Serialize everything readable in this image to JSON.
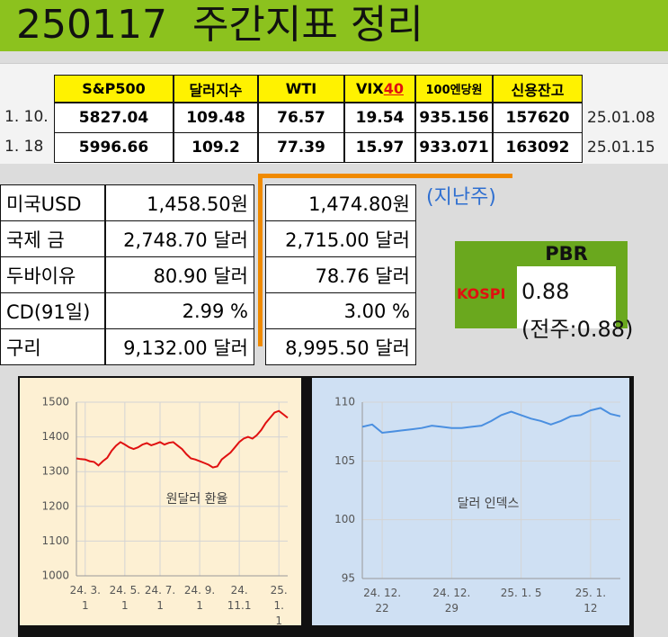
{
  "header": {
    "title": "250117  주간지표 정리"
  },
  "table1": {
    "headers": [
      "S&P500",
      "달러지수",
      "WTI",
      [
        "VIX",
        "40"
      ],
      "100엔당원",
      "신용잔고"
    ],
    "rows": [
      {
        "label": "1. 10.",
        "values": [
          "5827.04",
          "109.48",
          "76.57",
          "19.54",
          "935.156",
          "157620"
        ],
        "date": "25.01.08"
      },
      {
        "label": "1. 18",
        "values": [
          "5996.66",
          "109.2",
          "77.39",
          "15.97",
          "933.071",
          "163092"
        ],
        "date": "25.01.15"
      }
    ]
  },
  "table2": {
    "note": "(지난주)",
    "rows": [
      [
        "미국USD",
        "1,458.50원",
        "1,474.80원"
      ],
      [
        "국제 금",
        "2,748.70 달러",
        "2,715.00 달러"
      ],
      [
        "두바이유",
        "80.90 달러",
        "78.76 달러"
      ],
      [
        "CD(91일)",
        "2.99 %",
        "3.00 %"
      ],
      [
        "구리",
        "9,132.00 달러",
        "8,995.50 달러"
      ]
    ]
  },
  "pbr": {
    "title": "PBR",
    "label": "KOSPI",
    "value": "0.88",
    "previous": "(전주:0.88)"
  },
  "chart_data": [
    {
      "type": "line",
      "annotation": "원달러 환율",
      "color": "#e01010",
      "background": "#fdf0d3",
      "grid": true,
      "categories": [
        null,
        null,
        "24. 3.\n1",
        null,
        null,
        null,
        null,
        null,
        null,
        null,
        null,
        "24. 5.\n1",
        null,
        null,
        null,
        null,
        null,
        null,
        null,
        "24. 7.\n1",
        null,
        null,
        null,
        null,
        null,
        null,
        null,
        null,
        "24. 9.\n1",
        null,
        null,
        null,
        null,
        null,
        null,
        null,
        null,
        "24.\n11.1",
        null,
        null,
        null,
        null,
        null,
        null,
        null,
        null,
        "25. 1.\n1",
        null,
        null
      ],
      "values": [
        1338,
        1336,
        1335,
        1330,
        1328,
        1318,
        1330,
        1340,
        1360,
        1375,
        1385,
        1378,
        1370,
        1365,
        1370,
        1378,
        1382,
        1376,
        1380,
        1385,
        1378,
        1383,
        1385,
        1375,
        1365,
        1350,
        1338,
        1335,
        1330,
        1325,
        1320,
        1312,
        1315,
        1335,
        1345,
        1355,
        1370,
        1385,
        1395,
        1400,
        1395,
        1405,
        1420,
        1440,
        1455,
        1470,
        1475,
        1465,
        1455
      ],
      "ylim": [
        1000,
        1500
      ],
      "yticks": [
        1000,
        1100,
        1200,
        1300,
        1400,
        1500
      ]
    },
    {
      "type": "line",
      "annotation": "달러 인덱스",
      "color": "#4a8fe0",
      "background": "#cfe0f3",
      "grid": true,
      "categories": [
        null,
        null,
        "24. 12.\n22",
        null,
        null,
        null,
        null,
        null,
        null,
        "24. 12.\n29",
        null,
        null,
        null,
        null,
        null,
        null,
        "25. 1. 5",
        null,
        null,
        null,
        null,
        null,
        null,
        "25. 1. 12",
        null,
        null,
        null
      ],
      "values": [
        107.9,
        108.1,
        107.4,
        107.5,
        107.6,
        107.7,
        107.8,
        108.0,
        107.9,
        107.8,
        107.8,
        107.9,
        108.0,
        108.4,
        108.9,
        109.2,
        108.9,
        108.6,
        108.4,
        108.1,
        108.4,
        108.8,
        108.9,
        109.3,
        109.5,
        109.0,
        108.8
      ],
      "ylim": [
        95,
        110
      ],
      "yticks": [
        95,
        100,
        105,
        110
      ]
    }
  ]
}
